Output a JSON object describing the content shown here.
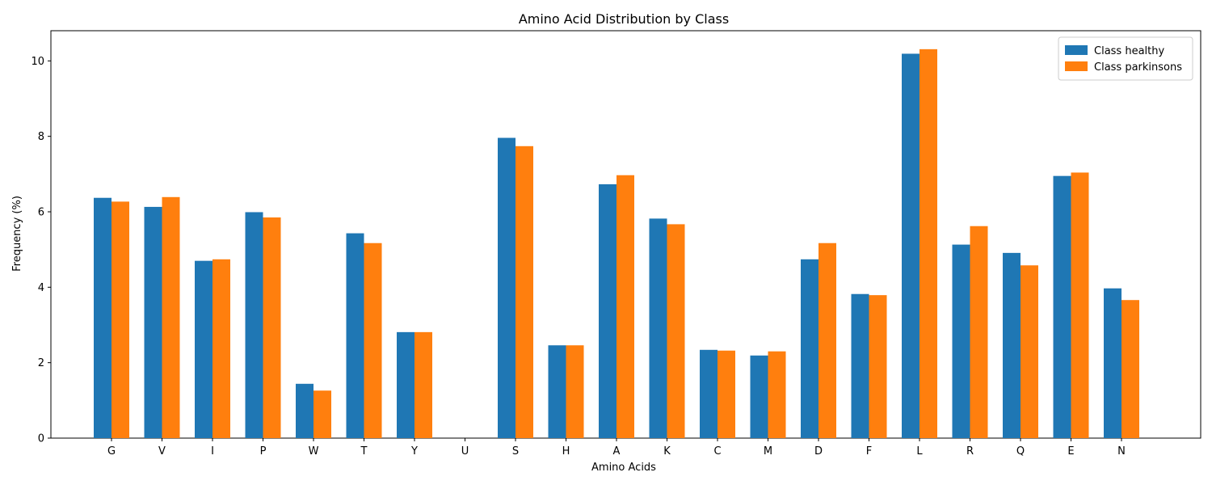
{
  "chart_data": {
    "type": "bar",
    "title": "Amino Acid Distribution by Class",
    "xlabel": "Amino Acids",
    "ylabel": "Frequency (%)",
    "ylim": [
      0,
      10.8
    ],
    "yticks": [
      0,
      2,
      4,
      6,
      8,
      10
    ],
    "grid": false,
    "legend_position": "top-right",
    "categories": [
      "G",
      "V",
      "I",
      "P",
      "W",
      "T",
      "Y",
      "U",
      "S",
      "H",
      "A",
      "K",
      "C",
      "M",
      "D",
      "F",
      "L",
      "R",
      "Q",
      "E",
      "N"
    ],
    "series": [
      {
        "name": "Class healthy",
        "color": "#1f77b4",
        "values": [
          6.37,
          6.13,
          4.7,
          5.99,
          1.44,
          5.43,
          2.81,
          0.0,
          7.96,
          2.46,
          6.73,
          5.82,
          2.34,
          2.19,
          4.74,
          3.82,
          10.19,
          5.13,
          4.91,
          6.95,
          3.97
        ]
      },
      {
        "name": "Class parkinsons",
        "color": "#ff7f0e",
        "values": [
          6.27,
          6.39,
          4.74,
          5.85,
          1.26,
          5.17,
          2.81,
          0.0,
          7.74,
          2.46,
          6.97,
          5.67,
          2.32,
          2.3,
          5.17,
          3.79,
          10.31,
          5.62,
          4.58,
          7.04,
          3.66
        ]
      }
    ]
  }
}
